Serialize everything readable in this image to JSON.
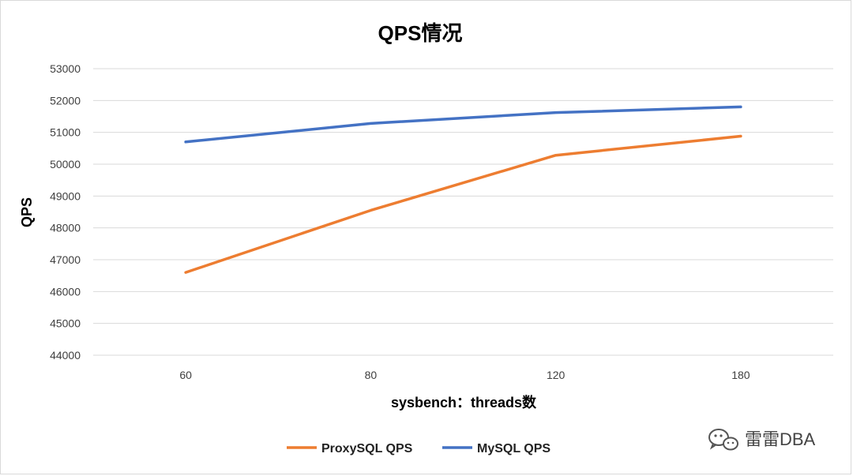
{
  "chart_data": {
    "type": "line",
    "title": "QPS情况",
    "xlabel": "sysbench：threads数",
    "ylabel": "QPS",
    "categories": [
      "60",
      "80",
      "120",
      "180"
    ],
    "ylim": [
      44000,
      53000
    ],
    "yticks": [
      44000,
      45000,
      46000,
      47000,
      48000,
      49000,
      50000,
      51000,
      52000,
      53000
    ],
    "grid": true,
    "legend_position": "bottom-center",
    "series": [
      {
        "name": "ProxySQL QPS",
        "color": "#ED7D31",
        "values": [
          46600,
          48550,
          50280,
          50880
        ]
      },
      {
        "name": "MySQL QPS",
        "color": "#4472C4",
        "values": [
          50700,
          51280,
          51620,
          51800
        ]
      }
    ]
  },
  "watermark": {
    "icon": "wechat-icon",
    "text": "雷雷DBA"
  }
}
